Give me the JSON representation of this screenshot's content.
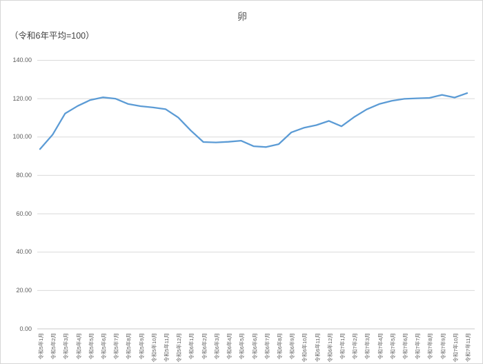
{
  "chart": {
    "title": "卵",
    "note": "（令和6年平均=100）"
  },
  "colors": {
    "line": "#5B9BD5",
    "grid": "#d9d9d9",
    "axis": "#c8c8c8",
    "text": "#595959"
  },
  "chart_data": {
    "type": "line",
    "title": "卵",
    "subtitle": "（令和6年平均=100）",
    "xlabel": "",
    "ylabel": "",
    "ylim": [
      0,
      140
    ],
    "ytick_step": 20,
    "ytick_labels": [
      "140.00",
      "120.00",
      "100.00",
      "80.00",
      "60.00",
      "40.00",
      "20.00",
      "0.00"
    ],
    "grid": true,
    "legend": false,
    "categories": [
      "令和5年1月",
      "令和5年2月",
      "令和5年3月",
      "令和5年4月",
      "令和5年5月",
      "令和5年6月",
      "令和5年7月",
      "令和5年8月",
      "令和5年9月",
      "令和5年10月",
      "令和5年11月",
      "令和5年12月",
      "令和6年1月",
      "令和6年2月",
      "令和6年3月",
      "令和6年4月",
      "令和6年5月",
      "令和6年6月",
      "令和6年7月",
      "令和6年8月",
      "令和6年9月",
      "令和6年10月",
      "令和6年11月",
      "令和6年12月",
      "令和7年1月",
      "令和7年2月",
      "令和7年3月",
      "令和7年4月",
      "令和7年5月",
      "令和7年6月",
      "令和7年7月",
      "令和7年8月",
      "令和7年9月",
      "令和7年10月",
      "令和7年11月"
    ],
    "values": [
      93.7,
      101.2,
      112.3,
      116.2,
      119.3,
      120.7,
      120.0,
      117.3,
      116.1,
      115.4,
      114.5,
      110.2,
      103.4,
      97.4,
      97.2,
      97.5,
      98.1,
      95.2,
      94.8,
      96.3,
      102.4,
      104.8,
      106.2,
      108.4,
      105.6,
      110.4,
      114.4,
      117.2,
      118.9,
      119.9,
      120.2,
      120.4,
      122.0,
      120.6,
      122.9
    ]
  }
}
